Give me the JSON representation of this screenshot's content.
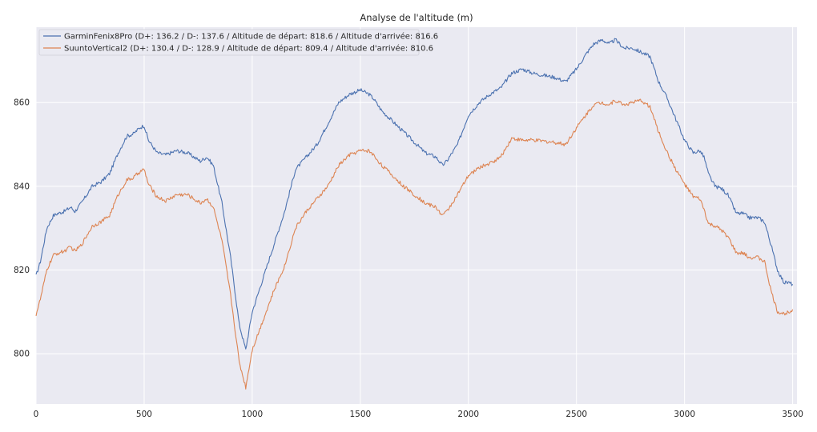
{
  "chart_data": {
    "type": "line",
    "title": "Analyse de l'altitude (m)",
    "xlabel": "",
    "ylabel": "",
    "xlim": [
      0,
      3520
    ],
    "ylim": [
      788,
      878
    ],
    "grid": true,
    "legend_position": "top-left",
    "background_color": "#eaeaf2",
    "grid_color": "#ffffff",
    "x_ticks": [
      0,
      500,
      1000,
      1500,
      2000,
      2500,
      3000,
      3500
    ],
    "y_ticks": [
      800,
      820,
      840,
      860
    ],
    "series": [
      {
        "name": "GarminFenix8Pro (D+: 136.2 / D-: 137.6 / Altitude de départ: 818.6 / Altitude d'arrivée: 816.6",
        "color": "#4c72b0",
        "x": [
          0,
          20,
          50,
          80,
          100,
          130,
          160,
          180,
          210,
          260,
          300,
          340,
          380,
          420,
          450,
          480,
          500,
          520,
          560,
          600,
          650,
          700,
          760,
          790,
          820,
          860,
          900,
          940,
          970,
          1000,
          1050,
          1100,
          1150,
          1200,
          1250,
          1300,
          1350,
          1400,
          1450,
          1500,
          1540,
          1560,
          1600,
          1700,
          1800,
          1850,
          1880,
          1900,
          1950,
          2000,
          2050,
          2100,
          2150,
          2200,
          2250,
          2300,
          2400,
          2450,
          2500,
          2550,
          2580,
          2620,
          2650,
          2680,
          2700,
          2720,
          2760,
          2800,
          2840,
          2860,
          2880,
          2920,
          2960,
          3000,
          3040,
          3070,
          3090,
          3110,
          3140,
          3170,
          3200,
          3240,
          3270,
          3300,
          3340,
          3370,
          3400,
          3430,
          3460,
          3480,
          3500
        ],
        "values": [
          818.6,
          822,
          830,
          833,
          833.5,
          834,
          835,
          834,
          836,
          840,
          841,
          843,
          848,
          852,
          852.5,
          854,
          854.5,
          851,
          848,
          847.5,
          848.5,
          848,
          846,
          847,
          845,
          836,
          823,
          807,
          801,
          810,
          818,
          826,
          834,
          844,
          847,
          850,
          855,
          860,
          862,
          863,
          862,
          861,
          858,
          853,
          848,
          847,
          845,
          846,
          850,
          857,
          860,
          862,
          863.5,
          867,
          868,
          867,
          866,
          865,
          868,
          872,
          874,
          875,
          874,
          875,
          874,
          873,
          873,
          872,
          871,
          868,
          865,
          861,
          856,
          851,
          848,
          848.5,
          847,
          843,
          840,
          839.5,
          838,
          833.5,
          833.5,
          832.5,
          832.5,
          831.5,
          826,
          820,
          817,
          817,
          816.6
        ]
      },
      {
        "name": "SuuntoVertical2 (D+: 130.4 / D-: 128.9 / Altitude de départ: 809.4 / Altitude d'arrivée: 810.6",
        "color": "#dd8452",
        "x": [
          0,
          20,
          50,
          80,
          100,
          130,
          160,
          180,
          210,
          260,
          300,
          340,
          380,
          420,
          450,
          480,
          500,
          520,
          560,
          600,
          650,
          700,
          760,
          790,
          820,
          860,
          900,
          940,
          970,
          1000,
          1050,
          1100,
          1150,
          1200,
          1250,
          1300,
          1350,
          1400,
          1450,
          1500,
          1540,
          1560,
          1600,
          1700,
          1800,
          1850,
          1880,
          1900,
          1950,
          2000,
          2050,
          2100,
          2150,
          2200,
          2250,
          2300,
          2400,
          2450,
          2500,
          2550,
          2580,
          2620,
          2650,
          2680,
          2700,
          2720,
          2760,
          2800,
          2840,
          2860,
          2880,
          2920,
          2960,
          3000,
          3040,
          3070,
          3090,
          3110,
          3140,
          3170,
          3200,
          3240,
          3270,
          3300,
          3340,
          3370,
          3400,
          3430,
          3460,
          3480,
          3500
        ],
        "values": [
          809.4,
          813,
          820,
          823.5,
          824,
          824.5,
          825.5,
          824.5,
          826,
          830.5,
          831.5,
          833,
          838,
          841.5,
          842,
          843.5,
          844,
          840.5,
          837.5,
          836.5,
          838,
          838,
          836,
          837,
          835,
          827,
          814,
          798,
          792,
          801,
          808,
          815,
          821,
          830,
          834,
          837,
          840,
          845,
          847.5,
          848.5,
          848.5,
          847.5,
          845,
          840,
          836,
          835,
          833,
          834,
          838,
          842.5,
          844.5,
          845.5,
          847,
          851.5,
          851,
          851,
          850.5,
          850,
          854,
          857.5,
          859.5,
          860,
          859.5,
          860.5,
          860,
          859.5,
          860,
          860.5,
          859,
          856,
          853,
          848,
          844,
          840.5,
          837.5,
          837,
          834.5,
          831,
          830.5,
          829.5,
          828,
          824,
          824,
          823,
          823,
          822,
          815,
          810,
          809.5,
          810,
          810.6
        ]
      }
    ]
  }
}
